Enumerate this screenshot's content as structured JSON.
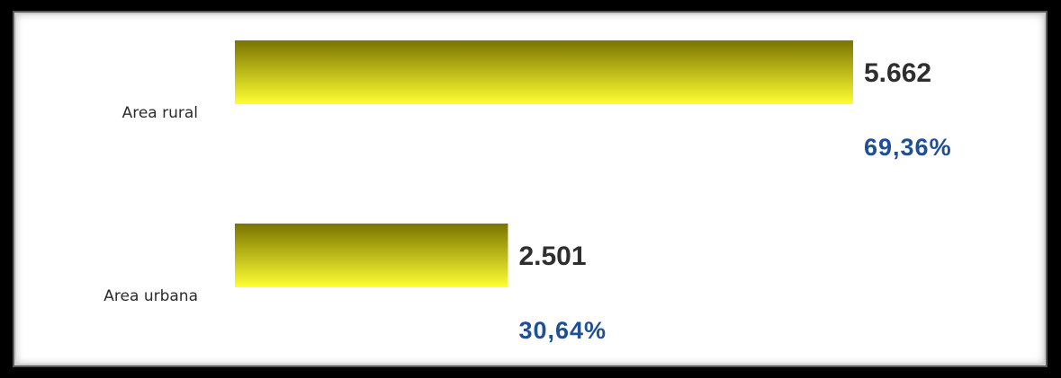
{
  "colors": {
    "bar_top": "#7a7400",
    "bar_bottom": "#ffff33",
    "value_text": "#2e2e2e",
    "percent_text": "#1f4f96"
  },
  "chart_data": {
    "type": "bar",
    "orientation": "horizontal",
    "categories": [
      "Area rural",
      "Area urbana"
    ],
    "values": [
      5662,
      2501
    ],
    "value_labels": [
      "5.662",
      "2.501"
    ],
    "percent_labels": [
      "69,36%",
      "30,64%"
    ],
    "percentages": [
      69.36,
      30.64
    ],
    "title": "",
    "xlabel": "",
    "ylabel": "",
    "xlim": [
      0,
      5662
    ],
    "grid": false,
    "legend": "none"
  }
}
